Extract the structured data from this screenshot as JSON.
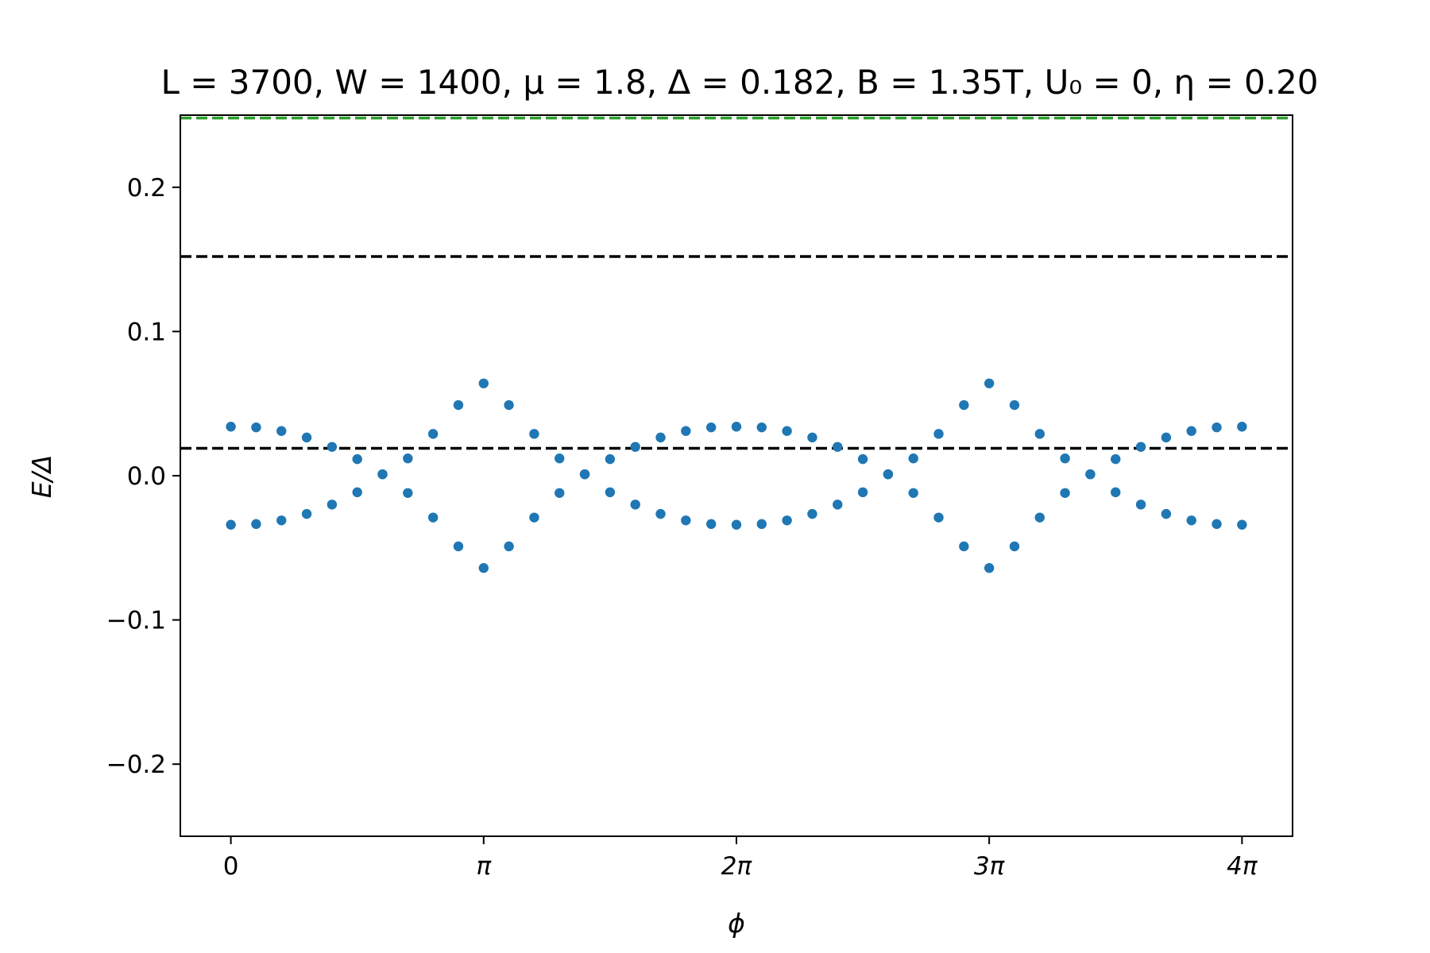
{
  "chart_data": {
    "type": "scatter",
    "title": "L = 3700, W = 1400, μ = 1.8, Δ = 0.182, B = 1.35T, U₀ = 0, η = 0.20",
    "xlabel": "ϕ",
    "ylabel": "E/Δ",
    "xlim": [
      -0.628,
      13.195
    ],
    "ylim": [
      -0.25,
      0.25
    ],
    "x_ticks": [
      {
        "value": 0,
        "label": "0"
      },
      {
        "value": 3.14159,
        "label": "π"
      },
      {
        "value": 6.28319,
        "label": "2π"
      },
      {
        "value": 9.42478,
        "label": "3π"
      },
      {
        "value": 12.56637,
        "label": "4π"
      }
    ],
    "y_ticks": [
      {
        "value": 0.2,
        "label": "0.2"
      },
      {
        "value": 0.1,
        "label": "0.1"
      },
      {
        "value": 0.0,
        "label": "0.0"
      },
      {
        "value": -0.1,
        "label": "−0.1"
      },
      {
        "value": -0.2,
        "label": "−0.2"
      }
    ],
    "x": [
      0,
      0.31416,
      0.62832,
      0.94248,
      1.25664,
      1.5708,
      1.88496,
      2.19911,
      2.51327,
      2.82743,
      3.14159,
      3.45575,
      3.76991,
      4.08407,
      4.39823,
      4.71239,
      5.02655,
      5.34071,
      5.65487,
      5.96903,
      6.28319,
      6.59734,
      6.9115,
      7.22566,
      7.53982,
      7.85398,
      8.16814,
      8.4823,
      8.79646,
      9.11062,
      9.42478,
      9.73894,
      10.0531,
      10.36726,
      10.68142,
      10.99557,
      11.30973,
      11.62389,
      11.93805,
      12.25221,
      12.56637
    ],
    "series": [
      {
        "name": "upper branch",
        "color": "#1f77b4",
        "values": [
          0.034,
          0.0335,
          0.031,
          0.0265,
          0.02,
          0.0115,
          0.001,
          0.012,
          0.029,
          0.049,
          0.064,
          0.049,
          0.029,
          0.012,
          0.001,
          0.0115,
          0.02,
          0.0265,
          0.031,
          0.0335,
          0.034,
          0.0335,
          0.031,
          0.0265,
          0.02,
          0.0115,
          0.001,
          0.012,
          0.029,
          0.049,
          0.064,
          0.049,
          0.029,
          0.012,
          0.001,
          0.0115,
          0.02,
          0.0265,
          0.031,
          0.0335,
          0.034
        ]
      },
      {
        "name": "lower branch",
        "color": "#1f77b4",
        "values": [
          -0.034,
          -0.0335,
          -0.031,
          -0.0265,
          -0.02,
          -0.0115,
          0.001,
          -0.012,
          -0.029,
          -0.049,
          -0.064,
          -0.049,
          -0.029,
          -0.012,
          0.001,
          -0.0115,
          -0.02,
          -0.0265,
          -0.031,
          -0.0335,
          -0.034,
          -0.0335,
          -0.031,
          -0.0265,
          -0.02,
          -0.0115,
          0.001,
          -0.012,
          -0.029,
          -0.049,
          -0.064,
          -0.049,
          -0.029,
          -0.012,
          0.001,
          -0.0115,
          -0.02,
          -0.0265,
          -0.031,
          -0.0335,
          -0.034
        ]
      }
    ],
    "reference_lines": [
      {
        "name": "upper-gap-line",
        "y": 0.248,
        "color": "#2ca02c",
        "style": "dashed"
      },
      {
        "name": "high-energy-line",
        "y": 0.152,
        "color": "#000000",
        "style": "dashed"
      },
      {
        "name": "low-energy-line",
        "y": 0.019,
        "color": "#000000",
        "style": "dashed"
      }
    ],
    "grid": false,
    "legend": "none"
  }
}
